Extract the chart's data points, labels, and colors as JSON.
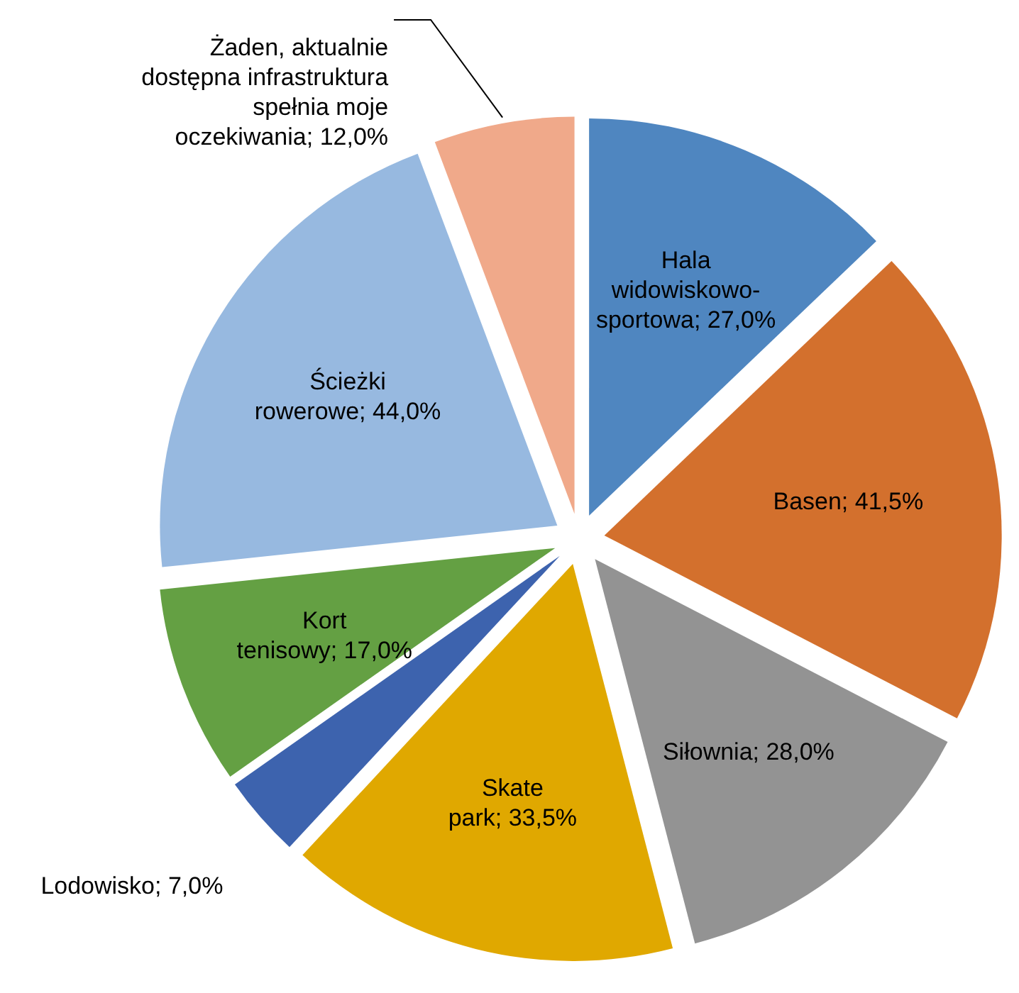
{
  "chart_data": {
    "type": "pie",
    "categories": [
      "Hala widowiskowo-sportowa",
      "Basen",
      "Siłownia",
      "Skate park",
      "Lodowisko",
      "Kort tenisowy",
      "Ścieżki rowerowe",
      "Żaden, aktualnie dostępna infrastruktura spełnia moje oczekiwania"
    ],
    "values": [
      27,
      41.5,
      28,
      33.5,
      7,
      17,
      44,
      12
    ],
    "value_labels": [
      "27,0%",
      "41,5%",
      "28,0%",
      "33,5%",
      "7,0%",
      "17,0%",
      "44,0%",
      "12,0%"
    ],
    "colors": [
      "#4f86c0",
      "#d3702d",
      "#939393",
      "#e0a800",
      "#3d63ae",
      "#64a043",
      "#97b9e0",
      "#f0a98a"
    ]
  }
}
